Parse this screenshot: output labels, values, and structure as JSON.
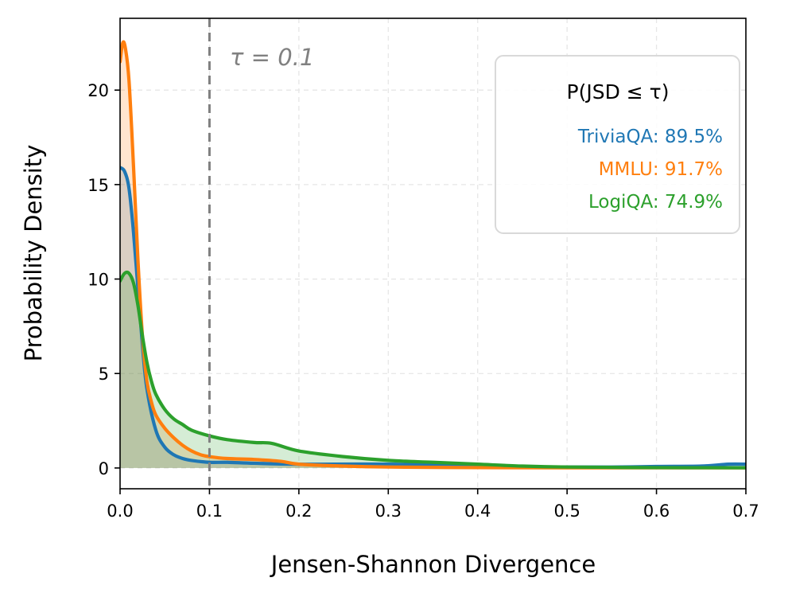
{
  "chart_data": {
    "type": "area",
    "title": "",
    "xlabel": "Jensen-Shannon Divergence",
    "ylabel": "Probability Density",
    "xlim": [
      0.0,
      0.7
    ],
    "ylim": [
      -1.1,
      23.8
    ],
    "xticks": [
      0.0,
      0.1,
      0.2,
      0.3,
      0.4,
      0.5,
      0.6,
      0.7
    ],
    "xtick_labels": [
      "0.0",
      "0.1",
      "0.2",
      "0.3",
      "0.4",
      "0.5",
      "0.6",
      "0.7"
    ],
    "yticks": [
      0,
      5,
      10,
      15,
      20
    ],
    "ytick_labels": [
      "0",
      "5",
      "10",
      "15",
      "20"
    ],
    "grid": true,
    "threshold": {
      "x": 0.1,
      "label": "τ = 0.1",
      "color": "#808080"
    },
    "legend": {
      "title": "P(JSD ≤ τ)",
      "placement": "top-right",
      "entries": [
        {
          "label": "TriviaQA: 89.5%",
          "color": "#1f77b4"
        },
        {
          "label": "MMLU: 91.7%",
          "color": "#ff7f0e"
        },
        {
          "label": "LogiQA: 74.9%",
          "color": "#2ca02c"
        }
      ]
    },
    "series": [
      {
        "name": "TriviaQA",
        "color": "#1f77b4",
        "x": [
          0.0,
          0.005,
          0.01,
          0.015,
          0.02,
          0.025,
          0.03,
          0.04,
          0.05,
          0.06,
          0.07,
          0.08,
          0.1,
          0.12,
          0.15,
          0.2,
          0.3,
          0.4,
          0.45,
          0.5,
          0.55,
          0.6,
          0.65,
          0.68,
          0.7
        ],
        "y": [
          15.9,
          15.7,
          14.8,
          12.5,
          9.5,
          6.5,
          4.2,
          2.0,
          1.1,
          0.7,
          0.5,
          0.4,
          0.3,
          0.3,
          0.25,
          0.2,
          0.2,
          0.1,
          0.05,
          0.05,
          0.05,
          0.08,
          0.1,
          0.2,
          0.2
        ]
      },
      {
        "name": "MMLU",
        "color": "#ff7f0e",
        "x": [
          0.0,
          0.003,
          0.006,
          0.01,
          0.015,
          0.02,
          0.025,
          0.03,
          0.035,
          0.04,
          0.05,
          0.06,
          0.07,
          0.08,
          0.09,
          0.1,
          0.12,
          0.15,
          0.18,
          0.2,
          0.25,
          0.3,
          0.4,
          0.5,
          0.6,
          0.7
        ],
        "y": [
          21.5,
          22.5,
          22.2,
          20.5,
          16.0,
          11.0,
          7.0,
          4.6,
          3.5,
          2.8,
          2.1,
          1.6,
          1.2,
          0.9,
          0.7,
          0.6,
          0.5,
          0.45,
          0.35,
          0.2,
          0.1,
          0.05,
          0.02,
          0.01,
          0.01,
          0.01
        ]
      },
      {
        "name": "LogiQA",
        "color": "#2ca02c",
        "x": [
          0.0,
          0.005,
          0.01,
          0.015,
          0.02,
          0.025,
          0.03,
          0.035,
          0.04,
          0.05,
          0.06,
          0.07,
          0.08,
          0.1,
          0.12,
          0.15,
          0.17,
          0.2,
          0.25,
          0.3,
          0.35,
          0.4,
          0.45,
          0.5,
          0.6,
          0.7
        ],
        "y": [
          9.9,
          10.3,
          10.3,
          9.8,
          8.6,
          7.0,
          5.6,
          4.6,
          3.9,
          3.1,
          2.6,
          2.3,
          2.0,
          1.7,
          1.5,
          1.35,
          1.3,
          0.9,
          0.6,
          0.4,
          0.3,
          0.2,
          0.1,
          0.05,
          0.02,
          0.01
        ]
      }
    ]
  }
}
